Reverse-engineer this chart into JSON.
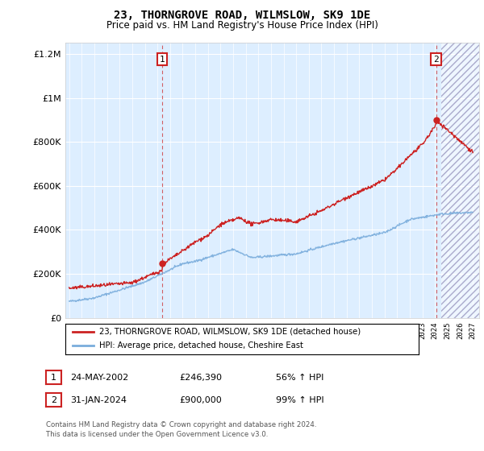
{
  "title": "23, THORNGROVE ROAD, WILMSLOW, SK9 1DE",
  "subtitle": "Price paid vs. HM Land Registry's House Price Index (HPI)",
  "legend_line1": "23, THORNGROVE ROAD, WILMSLOW, SK9 1DE (detached house)",
  "legend_line2": "HPI: Average price, detached house, Cheshire East",
  "annotation1_date": "24-MAY-2002",
  "annotation1_price": "£246,390",
  "annotation1_hpi": "56% ↑ HPI",
  "annotation2_date": "31-JAN-2024",
  "annotation2_price": "£900,000",
  "annotation2_hpi": "99% ↑ HPI",
  "footer": "Contains HM Land Registry data © Crown copyright and database right 2024.\nThis data is licensed under the Open Government Licence v3.0.",
  "hpi_color": "#7aaddc",
  "price_color": "#cc2222",
  "plot_bg_color": "#ddeeff",
  "fig_bg_color": "#ffffff",
  "ylim": [
    0,
    1250000
  ],
  "xmin": 1995,
  "xmax": 2027,
  "sale1_year": 2002.38,
  "sale1_price": 246390,
  "sale2_year": 2024.08,
  "sale2_price": 900000,
  "future_start": 2024.5
}
